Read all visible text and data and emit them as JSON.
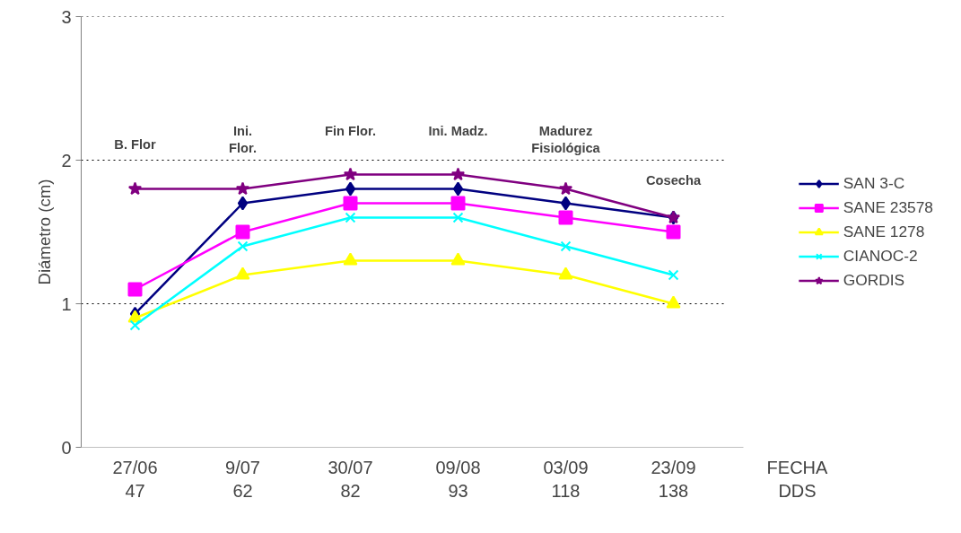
{
  "chart_data": {
    "type": "line",
    "ylabel": "Diámetro (cm)",
    "categories": [
      "27/06\n47",
      "9/07\n62",
      "30/07\n82",
      "09/08\n93",
      "03/09\n118",
      "23/09\n138"
    ],
    "series": [
      {
        "name": "SAN 3-C",
        "color": "#000080",
        "marker": "diamond",
        "values": [
          0.93,
          1.7,
          1.8,
          1.8,
          1.7,
          1.6
        ]
      },
      {
        "name": "SANE 23578",
        "color": "#ff00ff",
        "marker": "square",
        "values": [
          1.1,
          1.5,
          1.7,
          1.7,
          1.6,
          1.5
        ]
      },
      {
        "name": "SANE 1278",
        "color": "#ffff00",
        "marker": "triangle",
        "values": [
          0.9,
          1.2,
          1.3,
          1.3,
          1.2,
          1.0
        ]
      },
      {
        "name": "CIANOC-2",
        "color": "#00ffff",
        "marker": "cross",
        "values": [
          0.85,
          1.4,
          1.6,
          1.6,
          1.4,
          1.2
        ]
      },
      {
        "name": "GORDIS",
        "color": "#800080",
        "marker": "star",
        "values": [
          1.8,
          1.8,
          1.9,
          1.9,
          1.8,
          1.6
        ]
      }
    ],
    "ylim": [
      0,
      3
    ],
    "yticks": [
      0,
      1,
      2,
      3
    ],
    "grid": "y",
    "legend": "right",
    "annotations": [
      "B. Flor",
      "Ini.\nFlor.",
      "Fin Flor.",
      "Ini. Madz.",
      "Madurez\nFisiológica",
      "Cosecha",
      "FECHA",
      "DDS"
    ]
  }
}
